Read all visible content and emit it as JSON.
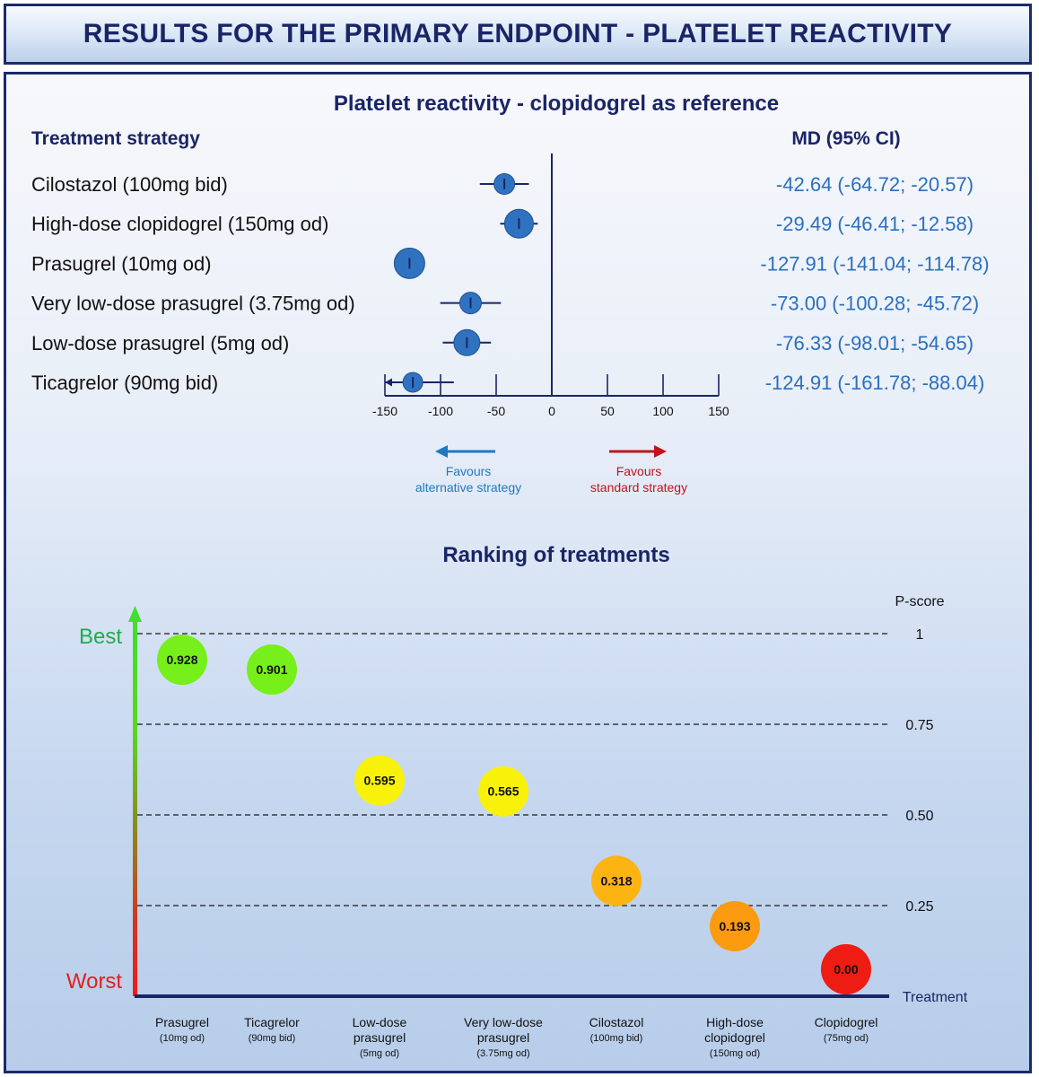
{
  "header": {
    "title": "RESULTS FOR THE PRIMARY ENDPOINT - PLATELET REACTIVITY"
  },
  "colors": {
    "navy": "#1a2566",
    "marker_blue": "#2f73c0",
    "value_blue": "#2a6fbf",
    "favours_blue": "#1f78c1",
    "favours_red": "#c0141a",
    "best_green": "#1dae4b",
    "worst_red": "#e41e1e"
  },
  "chart_data": [
    {
      "type": "forest",
      "title": "Platelet reactivity - clopidogrel as reference",
      "left_header": "Treatment strategy",
      "right_header": "MD (95% CI)",
      "xlim": [
        -150,
        150
      ],
      "xticks": [
        -150,
        -100,
        -50,
        0,
        50,
        100,
        150
      ],
      "reference_line": 0,
      "favours_left": [
        "Favours",
        "alternative strategy"
      ],
      "favours_right": [
        "Favours",
        "standard strategy"
      ],
      "rows": [
        {
          "label": "Cilostazol (100mg bid)",
          "md": -42.64,
          "lower": -64.72,
          "upper": -20.57,
          "ci_text": "-42.64 (-64.72; -20.57)",
          "weight": 0.55
        },
        {
          "label": "High-dose clopidogrel (150mg od)",
          "md": -29.49,
          "lower": -46.41,
          "upper": -12.58,
          "ci_text": "-29.49 (-46.41; -12.58)",
          "weight": 1.0
        },
        {
          "label": "Prasugrel (10mg od)",
          "md": -127.91,
          "lower": -141.04,
          "upper": -114.78,
          "ci_text": "-127.91 (-141.04; -114.78)",
          "weight": 1.1
        },
        {
          "label": "Very low-dose prasugrel (3.75mg od)",
          "md": -73.0,
          "lower": -100.28,
          "upper": -45.72,
          "ci_text": "-73.00 (-100.28; -45.72)",
          "weight": 0.6
        },
        {
          "label": "Low-dose prasugrel (5mg od)",
          "md": -76.33,
          "lower": -98.01,
          "upper": -54.65,
          "ci_text": "-76.33 (-98.01; -54.65)",
          "weight": 0.85
        },
        {
          "label": "Ticagrelor (90mg bid)",
          "md": -124.91,
          "lower": -161.78,
          "upper": -88.04,
          "ci_text": "-124.91 (-161.78; -88.04)",
          "weight": 0.5
        }
      ]
    },
    {
      "type": "scatter",
      "title": "Ranking of treatments",
      "ylabel": "P-score",
      "xlabel": "Treatment",
      "ylim": [
        0,
        1
      ],
      "yticks": [
        {
          "value": 1,
          "label": "1"
        },
        {
          "value": 0.75,
          "label": "0.75"
        },
        {
          "value": 0.5,
          "label": "0.50"
        },
        {
          "value": 0.25,
          "label": "0.25"
        }
      ],
      "best_label": "Best",
      "worst_label": "Worst",
      "points": [
        {
          "name": "Prasugrel",
          "dose": "(10mg od)",
          "value": 0.928,
          "label": "0.928",
          "color": "#76ef1a"
        },
        {
          "name": "Ticagrelor",
          "dose": "(90mg bid)",
          "value": 0.901,
          "label": "0.901",
          "color": "#76ef1a"
        },
        {
          "name": "Low-dose\nprasugrel",
          "dose": "(5mg od)",
          "value": 0.595,
          "label": "0.595",
          "color": "#f8f20a"
        },
        {
          "name": "Very low-dose\nprasugrel",
          "dose": "(3.75mg od)",
          "value": 0.565,
          "label": "0.565",
          "color": "#f8f20a"
        },
        {
          "name": "Cilostazol",
          "dose": "(100mg bid)",
          "value": 0.318,
          "label": "0.318",
          "color": "#fcb412"
        },
        {
          "name": "High-dose\nclopidogrel",
          "dose": "(150mg od)",
          "value": 0.193,
          "label": "0.193",
          "color": "#fc9a10"
        },
        {
          "name": "Clopidogrel",
          "dose": "(75mg od)",
          "value": 0.0,
          "label": "0.00",
          "color": "#ee1c12"
        }
      ]
    }
  ]
}
